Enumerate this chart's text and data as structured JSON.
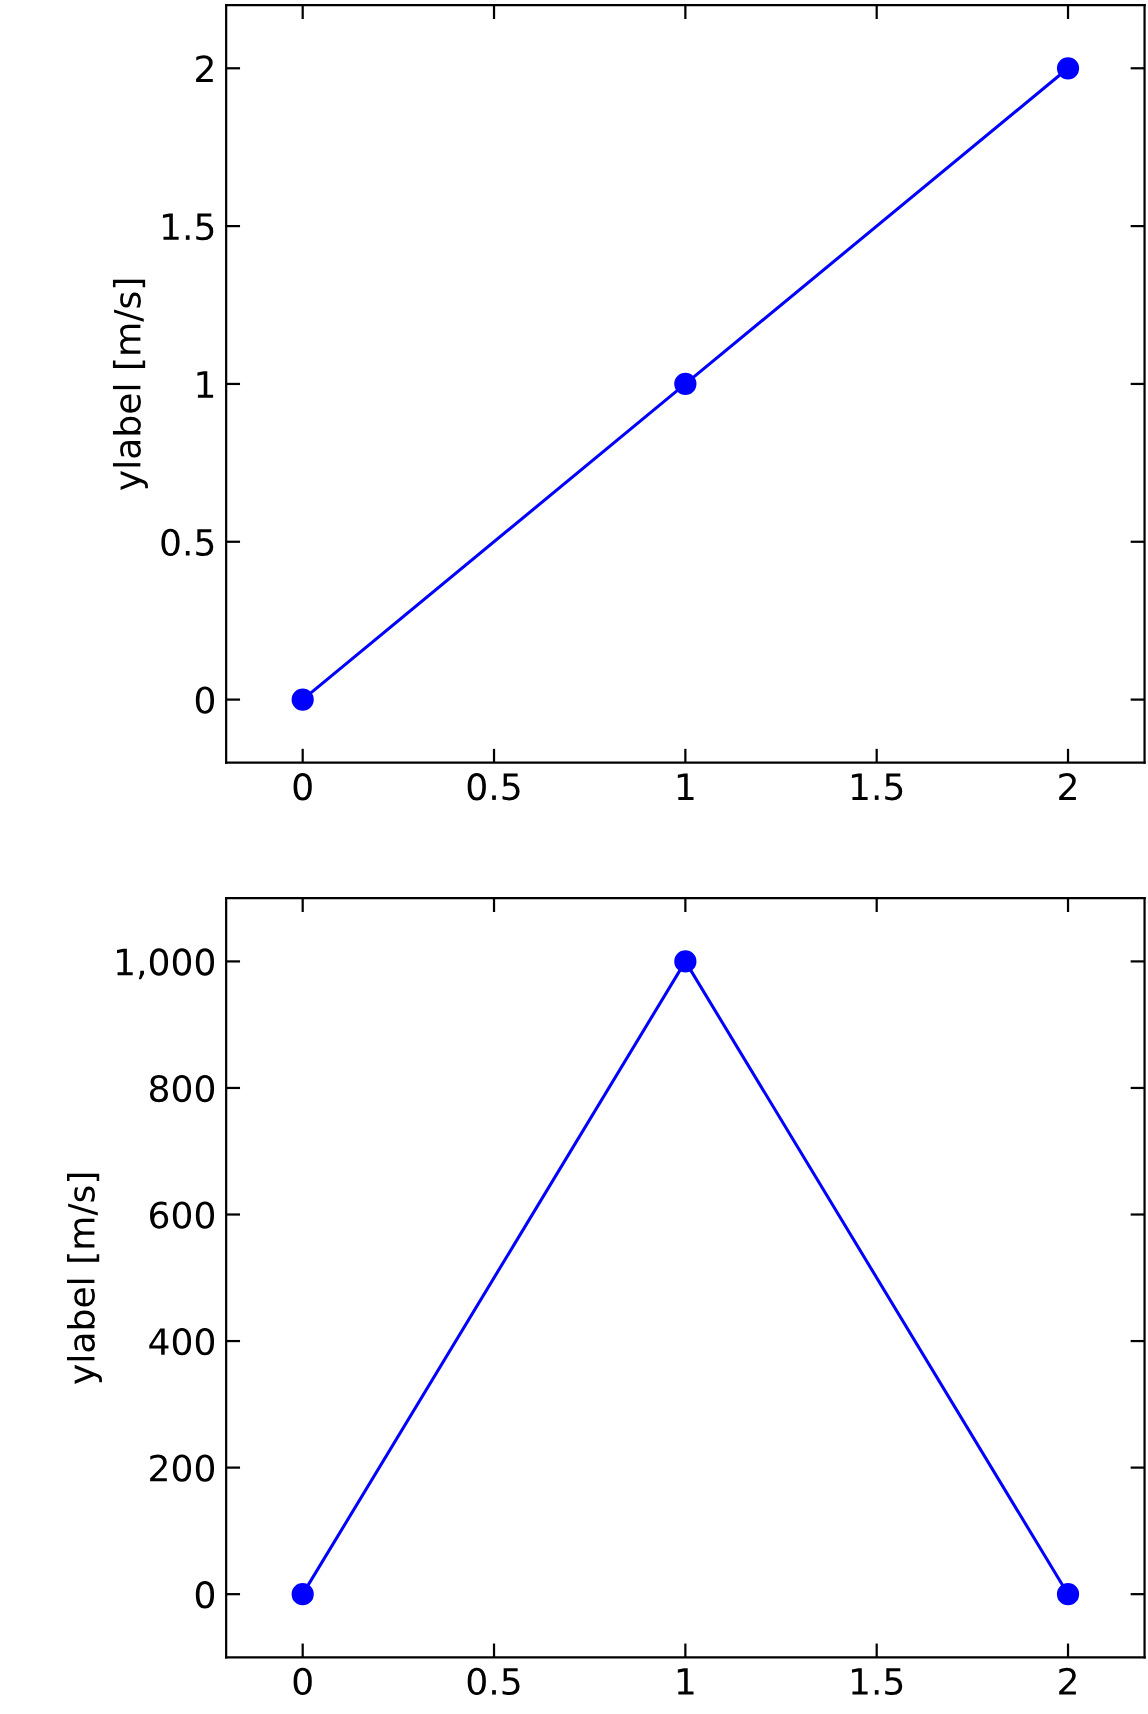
{
  "chart_data": [
    {
      "type": "line",
      "ylabel": "ylabel [m/s]",
      "x": [
        0,
        1,
        2
      ],
      "series": [
        {
          "color": "#0000ff",
          "values": [
            0,
            1,
            2
          ]
        }
      ],
      "xlim": [
        -0.2,
        2.2
      ],
      "ylim": [
        -0.2,
        2.2
      ],
      "xticks": [
        0,
        0.5,
        1,
        1.5,
        2
      ],
      "yticks": [
        0,
        0.5,
        1,
        1.5,
        2
      ],
      "marker": "circle",
      "line_style": "solid",
      "grid": false
    },
    {
      "type": "line",
      "ylabel": "ylabel [m/s]",
      "x": [
        0,
        1,
        2
      ],
      "series": [
        {
          "color": "#0000ff",
          "values": [
            0,
            1000,
            0
          ]
        }
      ],
      "xlim": [
        -0.2,
        2.2
      ],
      "ylim": [
        -100,
        1100
      ],
      "xticks": [
        0,
        0.5,
        1,
        1.5,
        2
      ],
      "yticks": [
        0,
        200,
        400,
        600,
        800,
        {
          "value": 1000,
          "label": "1,000"
        }
      ],
      "marker": "circle",
      "line_style": "solid",
      "grid": false
    }
  ]
}
